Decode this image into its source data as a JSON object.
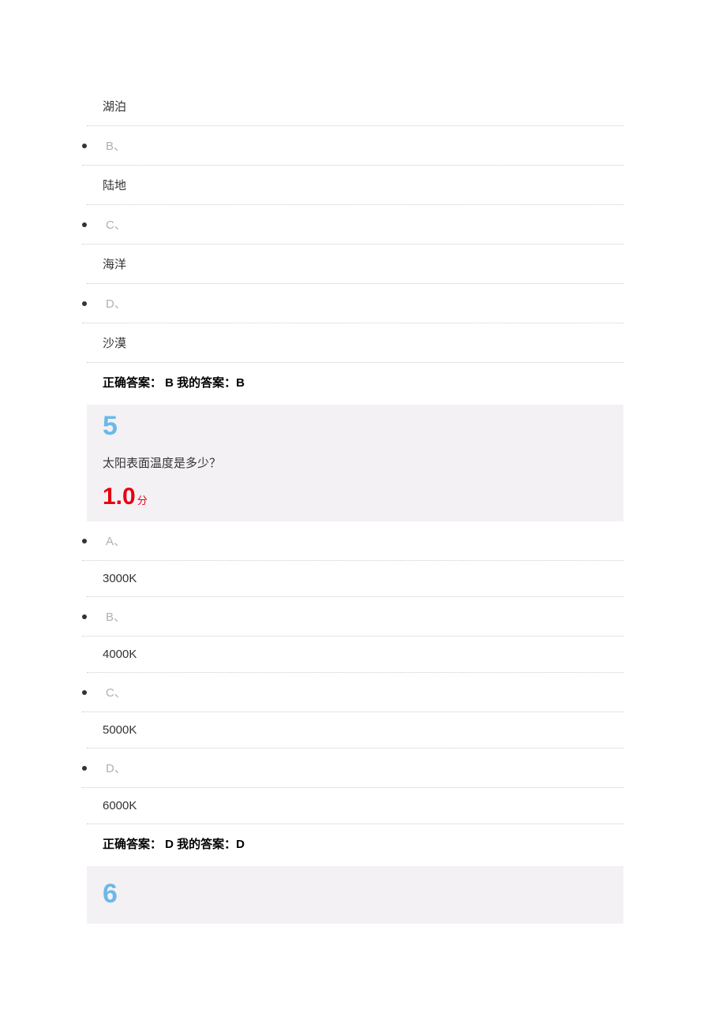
{
  "q4_tail": {
    "optA_text": "湖泊",
    "optB_letter": "B、",
    "optB_text": "陆地",
    "optC_letter": "C、",
    "optC_text": "海洋",
    "optD_letter": "D、",
    "optD_text": "沙漠",
    "answer": "正确答案： B 我的答案：B"
  },
  "q5": {
    "number": "5",
    "question": "太阳表面温度是多少？",
    "score_value": "1.0",
    "score_unit": "分",
    "optA_letter": "A、",
    "optA_text": "3000K",
    "optB_letter": "B、",
    "optB_text": "4000K",
    "optC_letter": "C、",
    "optC_text": "5000K",
    "optD_letter": "D、",
    "optD_text": "6000K",
    "answer": "正确答案： D 我的答案：D"
  },
  "q6": {
    "number": "6"
  }
}
